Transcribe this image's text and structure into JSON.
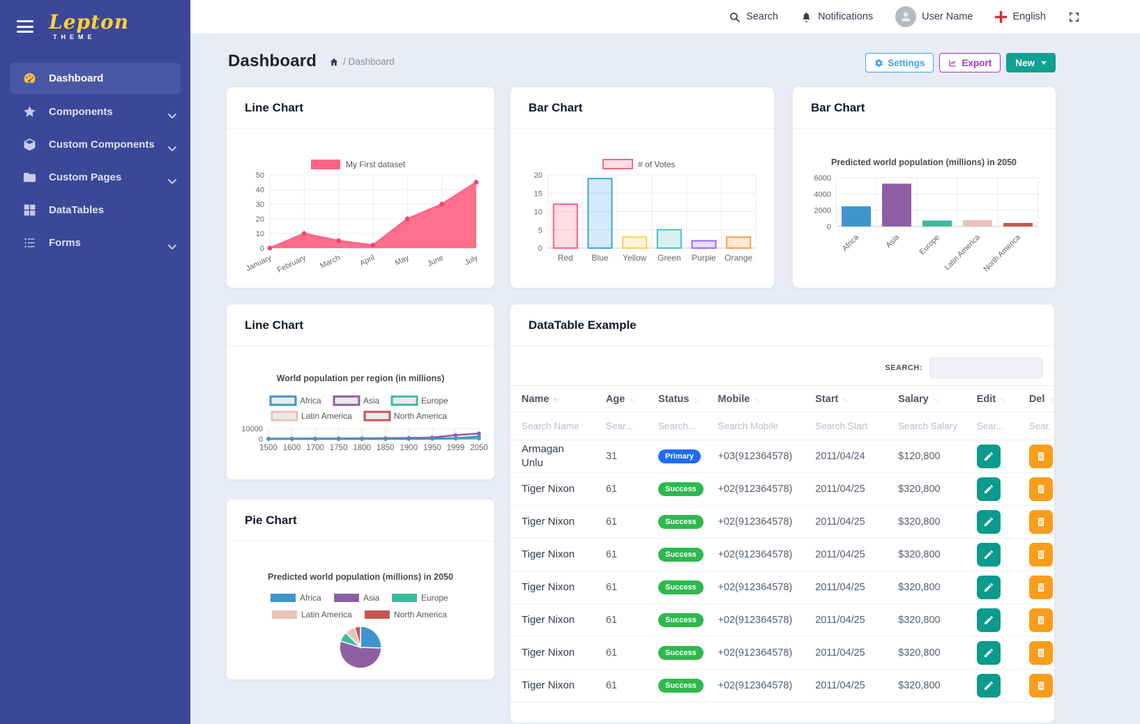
{
  "sidebar": {
    "logo": "Lepton",
    "logo_sub": "THEME",
    "items": [
      {
        "label": "Dashboard",
        "icon": "gauge-icon",
        "active": true,
        "chevron": false
      },
      {
        "label": "Components",
        "icon": "star-icon",
        "active": false,
        "chevron": true
      },
      {
        "label": "Custom Components",
        "icon": "cube-icon",
        "active": false,
        "chevron": true
      },
      {
        "label": "Custom Pages",
        "icon": "folder-icon",
        "active": false,
        "chevron": true
      },
      {
        "label": "DataTables",
        "icon": "table-icon",
        "active": false,
        "chevron": false
      },
      {
        "label": "Forms",
        "icon": "list-icon",
        "active": false,
        "chevron": true
      }
    ]
  },
  "topbar": {
    "search": "Search",
    "notifications": "Notifications",
    "user": "User Name",
    "language": "English"
  },
  "page": {
    "title": "Dashboard",
    "breadcrumb": "/ Dashboard",
    "buttons": {
      "settings": "Settings",
      "export": "Export",
      "new": "New"
    }
  },
  "cards": {
    "line1": "Line Chart",
    "bar1": "Bar Chart",
    "bar2": "Bar Chart",
    "line2": "Line Chart",
    "datatable": "DataTable Example",
    "pie": "Pie Chart"
  },
  "theme": {
    "sidebar_bg": "#3b4798",
    "sidebar_active_bg": "#4a57a7",
    "settings_blue": "#3da0f5",
    "export_purple": "#a234c7",
    "new_teal": "#11a192",
    "edit_teal": "#0a9b8d",
    "delete_orange": "#f99d1b"
  },
  "chart_data": [
    {
      "id": "line1",
      "type": "area",
      "legend": "My First dataset",
      "color": "#ff6384",
      "categories": [
        "January",
        "February",
        "March",
        "April",
        "May",
        "June",
        "July"
      ],
      "values": [
        0,
        10,
        5,
        2,
        20,
        30,
        45
      ],
      "ylim": [
        0,
        50
      ],
      "yticks": [
        0,
        10,
        20,
        30,
        40,
        50
      ],
      "grid": true,
      "legend_position": "top"
    },
    {
      "id": "bar1",
      "type": "bar",
      "legend": "# of Votes",
      "categories": [
        "Red",
        "Blue",
        "Yellow",
        "Green",
        "Purple",
        "Orange"
      ],
      "values": [
        12,
        19,
        3,
        5,
        2,
        3
      ],
      "fills": [
        "rgba(255,99,132,0.22)",
        "rgba(54,162,235,0.22)",
        "rgba(255,206,86,0.22)",
        "rgba(75,192,192,0.22)",
        "rgba(153,102,255,0.22)",
        "rgba(255,159,64,0.22)"
      ],
      "borders": [
        "#ff6384",
        "#36a2eb",
        "#ffce56",
        "#4bc0c0",
        "#9966ff",
        "#ff9f40"
      ],
      "ylim": [
        0,
        20
      ],
      "yticks": [
        0,
        5,
        10,
        15,
        20
      ],
      "grid": true,
      "legend_position": "top"
    },
    {
      "id": "bar2",
      "type": "bar",
      "title": "Predicted world population (millions) in 2050",
      "categories": [
        "Africa",
        "Asia",
        "Europe",
        "Latin America",
        "North America"
      ],
      "values": [
        2478,
        5267,
        734,
        784,
        433
      ],
      "colors": [
        "#3e95cd",
        "#8e5ea2",
        "#3cba9f",
        "#e8c3b9",
        "#c45850"
      ],
      "ylim": [
        0,
        6000
      ],
      "yticks": [
        0,
        2000,
        4000,
        6000
      ],
      "grid": true,
      "xlabel_rotation": 45
    },
    {
      "id": "line2",
      "type": "line",
      "title": "World population per region (in millions)",
      "x": [
        1500,
        1600,
        1700,
        1750,
        1800,
        1850,
        1900,
        1950,
        1999,
        2050
      ],
      "series": [
        {
          "name": "Africa",
          "color": "#3e95cd",
          "values": [
            86,
            114,
            106,
            106,
            107,
            111,
            133,
            221,
            783,
            2478
          ]
        },
        {
          "name": "Asia",
          "color": "#8e5ea2",
          "values": [
            282,
            350,
            411,
            502,
            635,
            809,
            947,
            1402,
            3700,
            5267
          ]
        },
        {
          "name": "Europe",
          "color": "#3cba9f",
          "values": [
            168,
            170,
            178,
            190,
            203,
            276,
            408,
            547,
            675,
            734
          ]
        },
        {
          "name": "Latin America",
          "color": "#e8c3b9",
          "values": [
            40,
            20,
            10,
            16,
            24,
            38,
            74,
            167,
            508,
            784
          ]
        },
        {
          "name": "North America",
          "color": "#c45850",
          "values": [
            6,
            3,
            2,
            2,
            7,
            26,
            82,
            172,
            312,
            433
          ]
        }
      ],
      "ylim": [
        0,
        10000
      ],
      "yticks": [
        0,
        10000
      ],
      "grid": true,
      "legend_position": "top"
    },
    {
      "id": "pie",
      "type": "pie",
      "title": "Predicted world population (millions) in 2050",
      "labels": [
        "Africa",
        "Asia",
        "Europe",
        "Latin America",
        "North America"
      ],
      "values": [
        2478,
        5267,
        734,
        784,
        433
      ],
      "colors": [
        "#3e95cd",
        "#8e5ea2",
        "#3cba9f",
        "#e8c3b9",
        "#c45850"
      ],
      "legend_position": "top"
    }
  ],
  "datatable": {
    "search_label": "SEARCH:",
    "search_value": "",
    "columns": [
      {
        "label": "Name",
        "placeholder": "Search Name",
        "sorted": "asc"
      },
      {
        "label": "Age",
        "placeholder": "Sear...",
        "sorted": null
      },
      {
        "label": "Status",
        "placeholder": "Search...",
        "sorted": null
      },
      {
        "label": "Mobile",
        "placeholder": "Search Mobile",
        "sorted": null
      },
      {
        "label": "Start",
        "placeholder": "Search Start",
        "sorted": null
      },
      {
        "label": "Salary",
        "placeholder": "Search Salary",
        "sorted": null
      },
      {
        "label": "Edit",
        "placeholder": "Sear...",
        "sorted": null
      },
      {
        "label": "Del",
        "placeholder": "Sear...",
        "sorted": null
      }
    ],
    "status_styles": {
      "Primary": "#1f6cf1",
      "Success": "#2eb94e"
    },
    "rows": [
      {
        "name": "Armagan Unlu",
        "age": "31",
        "status": "Primary",
        "mobile": "+03(912364578)",
        "start": "2011/04/24",
        "salary": "$120,800"
      },
      {
        "name": "Tiger Nixon",
        "age": "61",
        "status": "Success",
        "mobile": "+02(912364578)",
        "start": "2011/04/25",
        "salary": "$320,800"
      },
      {
        "name": "Tiger Nixon",
        "age": "61",
        "status": "Success",
        "mobile": "+02(912364578)",
        "start": "2011/04/25",
        "salary": "$320,800"
      },
      {
        "name": "Tiger Nixon",
        "age": "61",
        "status": "Success",
        "mobile": "+02(912364578)",
        "start": "2011/04/25",
        "salary": "$320,800"
      },
      {
        "name": "Tiger Nixon",
        "age": "61",
        "status": "Success",
        "mobile": "+02(912364578)",
        "start": "2011/04/25",
        "salary": "$320,800"
      },
      {
        "name": "Tiger Nixon",
        "age": "61",
        "status": "Success",
        "mobile": "+02(912364578)",
        "start": "2011/04/25",
        "salary": "$320,800"
      },
      {
        "name": "Tiger Nixon",
        "age": "61",
        "status": "Success",
        "mobile": "+02(912364578)",
        "start": "2011/04/25",
        "salary": "$320,800"
      },
      {
        "name": "Tiger Nixon",
        "age": "61",
        "status": "Success",
        "mobile": "+02(912364578)",
        "start": "2011/04/25",
        "salary": "$320,800"
      }
    ]
  }
}
